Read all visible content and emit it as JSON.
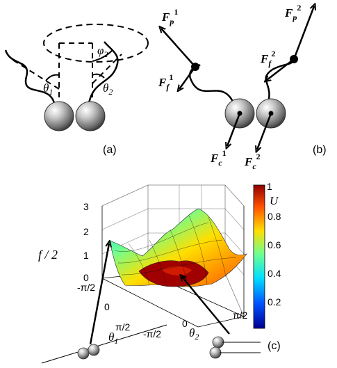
{
  "panel_a": {
    "label": "(a)",
    "phi_label": "φ",
    "phi_sub": "2",
    "theta1_label": "θ",
    "theta1_sub": "1",
    "theta2_label": "θ",
    "theta2_sub": "2"
  },
  "panel_b": {
    "label": "(b)",
    "F_letter": "F",
    "fp1_sub": "p",
    "fp1_sup": "1",
    "fp2_sub": "p",
    "fp2_sup": "2",
    "ff1_sub": "f",
    "ff1_sup": "1",
    "ff2_sub": "f",
    "ff2_sup": "2",
    "fc1_sub": "c",
    "fc1_sup": "1",
    "fc2_sub": "c",
    "fc2_sup": "2"
  },
  "panel_c": {
    "label": "(c)",
    "z_label": "f / 2",
    "z_ticks": [
      "0",
      "1",
      "2",
      "3"
    ],
    "theta1_ticks": [
      "-π/2",
      "0",
      "π/2"
    ],
    "theta2_ticks": [
      "-π/2",
      "0",
      "π/2"
    ],
    "theta1_axis_label": "θ",
    "theta1_axis_sub": "1",
    "theta2_axis_label": "θ",
    "theta2_axis_sub": "2",
    "colorbar_title": "U",
    "colorbar_ticks": [
      "1",
      "0.8",
      "0.6",
      "0.4",
      "0.2"
    ],
    "colormap_stops": [
      "#00008f",
      "#0050ff",
      "#00dfff",
      "#70ff8f",
      "#ffdf00",
      "#ff5000",
      "#8f0000"
    ]
  }
}
